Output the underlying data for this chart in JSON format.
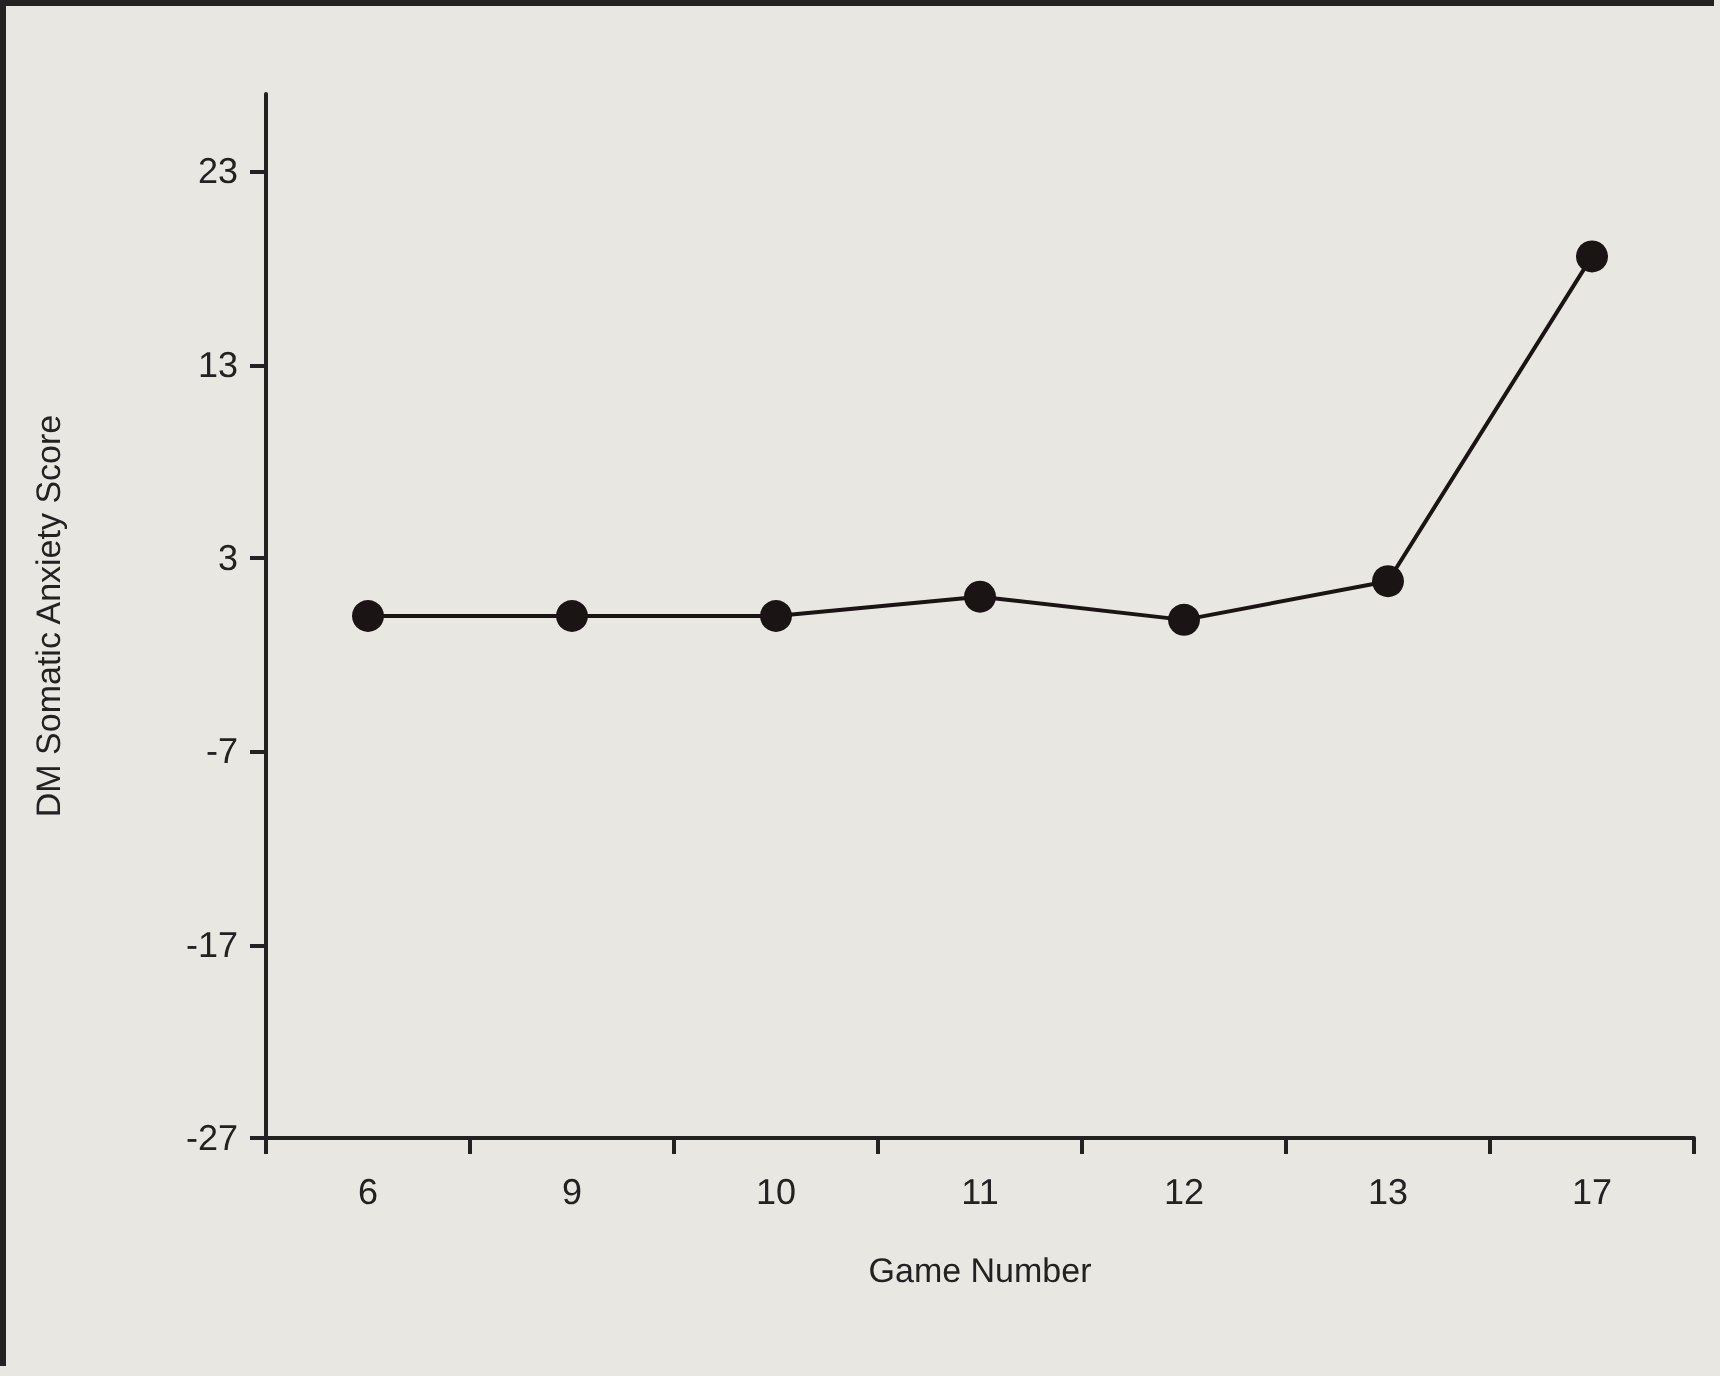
{
  "chart_data": {
    "type": "line",
    "xlabel": "Game Number",
    "ylabel": "DM Somatic Anxiety Score",
    "categories": [
      "6",
      "9",
      "10",
      "11",
      "12",
      "13",
      "17"
    ],
    "series": [
      {
        "color": "#1a1414",
        "values": [
          0,
          0,
          0,
          1,
          -0.2,
          1.8,
          18.6
        ]
      }
    ],
    "ylim": [
      -27,
      27
    ],
    "yticks": [
      -27,
      -17,
      -7,
      3,
      13,
      23
    ],
    "grid": false,
    "marker": "circle",
    "line_style": "solid"
  }
}
